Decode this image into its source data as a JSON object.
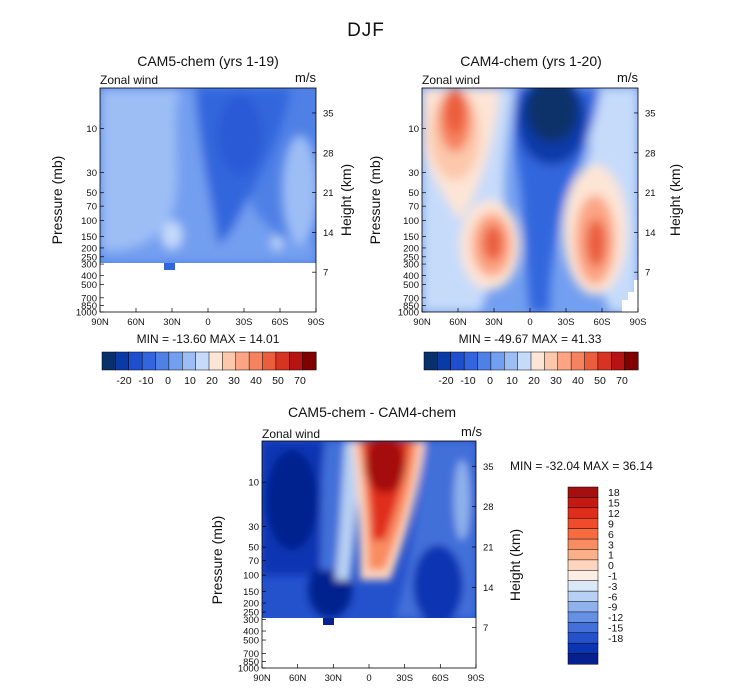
{
  "figure_title": "DJF",
  "chart_data": [
    {
      "type": "heatmap",
      "title": "CAM5-chem (yrs 1-19)",
      "subtitle": "Zonal wind",
      "units": "m/s",
      "xlabel": "",
      "ylabel": "Pressure (mb)",
      "y2label": "Height (km)",
      "x_ticks": [
        "90N",
        "60N",
        "30N",
        "0",
        "30S",
        "60S",
        "90S"
      ],
      "y_ticks": [
        "10",
        "30",
        "50",
        "70",
        "100",
        "150",
        "200",
        "250",
        "300",
        "400",
        "500",
        "700",
        "850",
        "1000"
      ],
      "height_ticks": [
        "35",
        "28",
        "21",
        "14",
        "7"
      ],
      "stats": "MIN = -13.60   MAX =  14.01",
      "colorbar": {
        "orientation": "horizontal",
        "labels": [
          "-20",
          "-10",
          "0",
          "10",
          "20",
          "30",
          "40",
          "50",
          "70"
        ],
        "colors": [
          "#08306b",
          "#0a3aa8",
          "#1f4fcf",
          "#3366dd",
          "#4f80e6",
          "#739ff0",
          "#9dbdf5",
          "#c6dbfa",
          "#fde5d5",
          "#fcc8ac",
          "#fca483",
          "#f6835f",
          "#ea5d3d",
          "#d63322",
          "#b51412",
          "#800000"
        ]
      },
      "field": {
        "description": "zonal wind (m/s) contoured from ~-15 (blue) to ~15",
        "max": 14.01,
        "min": -13.6
      }
    },
    {
      "type": "heatmap",
      "title": "CAM4-chem (yrs 1-20)",
      "subtitle": "Zonal wind",
      "units": "m/s",
      "xlabel": "",
      "ylabel": "Pressure (mb)",
      "y2label": "Height (km)",
      "x_ticks": [
        "90N",
        "60N",
        "30N",
        "0",
        "30S",
        "60S",
        "90S"
      ],
      "y_ticks": [
        "10",
        "30",
        "50",
        "70",
        "100",
        "150",
        "200",
        "250",
        "300",
        "400",
        "500",
        "700",
        "850",
        "1000"
      ],
      "height_ticks": [
        "35",
        "28",
        "21",
        "14",
        "7"
      ],
      "stats": "MIN = -49.67   MAX =  41.33",
      "colorbar": {
        "orientation": "horizontal",
        "labels": [
          "-20",
          "-10",
          "0",
          "10",
          "20",
          "30",
          "40",
          "50",
          "70"
        ],
        "colors": [
          "#08306b",
          "#0a3aa8",
          "#1f4fcf",
          "#3366dd",
          "#4f80e6",
          "#739ff0",
          "#9dbdf5",
          "#c6dbfa",
          "#fde5d5",
          "#fcc8ac",
          "#fca483",
          "#f6835f",
          "#ea5d3d",
          "#d63322",
          "#b51412",
          "#800000"
        ]
      },
      "field": {
        "max": 41.33,
        "min": -49.67
      }
    },
    {
      "type": "heatmap",
      "title": "CAM5-chem - CAM4-chem",
      "subtitle": "Zonal wind",
      "units": "m/s",
      "xlabel": "",
      "ylabel": "Pressure (mb)",
      "y2label": "Height (km)",
      "x_ticks": [
        "90N",
        "60N",
        "30N",
        "0",
        "30S",
        "60S",
        "90S"
      ],
      "y_ticks": [
        "10",
        "30",
        "50",
        "70",
        "100",
        "150",
        "200",
        "250",
        "300",
        "400",
        "500",
        "700",
        "850",
        "1000"
      ],
      "height_ticks": [
        "35",
        "28",
        "21",
        "14",
        "7"
      ],
      "stats": "MIN = -32.04   MAX =  36.14",
      "colorbar": {
        "orientation": "vertical",
        "labels": [
          "18",
          "15",
          "12",
          "9",
          "6",
          "3",
          "1",
          "0",
          "-1",
          "-3",
          "-6",
          "-9",
          "-12",
          "-15",
          "-18"
        ],
        "colors": [
          "#a50f0f",
          "#c51a14",
          "#e02d1c",
          "#f04c2c",
          "#f76b40",
          "#f98c60",
          "#fbb08a",
          "#fdd5bf",
          "#fdeee3",
          "#dbe8f8",
          "#b8d0f3",
          "#8fb1ec",
          "#6690e3",
          "#4370d9",
          "#2452cc",
          "#0a35b3",
          "#06218f"
        ]
      },
      "field": {
        "max": 36.14,
        "min": -32.04
      }
    }
  ]
}
